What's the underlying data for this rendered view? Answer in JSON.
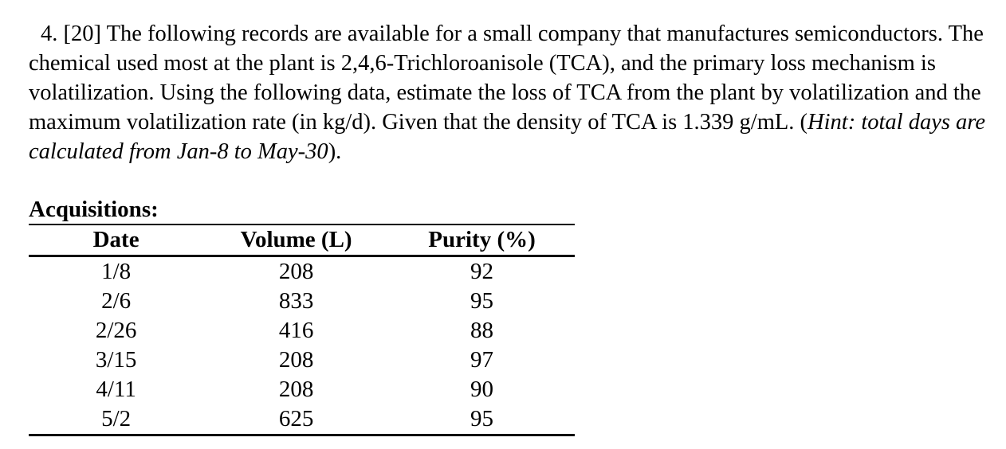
{
  "problem": {
    "text_before_hint": "4. [20] The following records are available for a small company that manufactures semiconductors. The chemical used most at the plant is 2,4,6-Trichloroanisole (TCA), and the primary loss mechanism is volatilization. Using the following data, estimate the loss of TCA from the plant by volatilization and the maximum volatilization rate (in kg/d). Given that the density of TCA is 1.339 g/mL. (",
    "hint_italic": "Hint: total days are calculated from Jan-8 to May-30",
    "text_after_hint": ")."
  },
  "table": {
    "title": "Acquisitions:",
    "headers": [
      "Date",
      "Volume (L)",
      "Purity (%)"
    ],
    "rows": [
      [
        "1/8",
        "208",
        "92"
      ],
      [
        "2/6",
        "833",
        "95"
      ],
      [
        "2/26",
        "416",
        "88"
      ],
      [
        "3/15",
        "208",
        "97"
      ],
      [
        "4/11",
        "208",
        "90"
      ],
      [
        "5/2",
        "625",
        "95"
      ]
    ]
  },
  "colors": {
    "text": "#000000",
    "background": "#ffffff"
  }
}
